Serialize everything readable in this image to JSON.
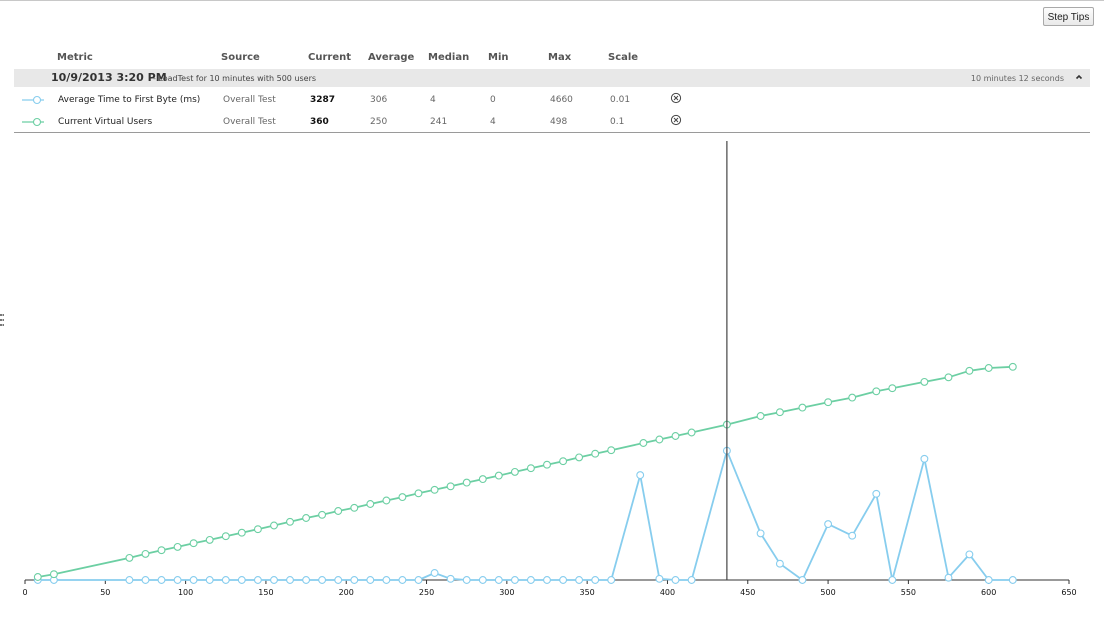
{
  "toolbar": {
    "step_tips_label": "Step Tips"
  },
  "table": {
    "headers": {
      "metric": "Metric",
      "source": "Source",
      "current": "Current",
      "average": "Average",
      "median": "Median",
      "min": "Min",
      "max": "Max",
      "scale": "Scale"
    },
    "group": {
      "date": "10/9/2013 3:20 PM",
      "description": "- LoadTest for 10 minutes with 500 users",
      "duration": "10 minutes 12 seconds",
      "collapse_icon": "chevron-up-icon"
    },
    "rows": [
      {
        "metric": "Average Time to First Byte (ms)",
        "source": "Overall Test",
        "current": "3287",
        "average": "306",
        "median": "4",
        "min": "0",
        "max": "4660",
        "scale": "0.01",
        "color": "#87cdee",
        "remove_icon": "remove-icon"
      },
      {
        "metric": "Current Virtual Users",
        "source": "Overall Test",
        "current": "360",
        "average": "250",
        "median": "241",
        "min": "4",
        "max": "498",
        "scale": "0.1",
        "color": "#6ccfa3",
        "remove_icon": "remove-icon"
      }
    ]
  },
  "chart_data": {
    "type": "line",
    "xlim": [
      0,
      650
    ],
    "x_ticks": [
      "0",
      "50",
      "100",
      "150",
      "200",
      "250",
      "300",
      "350",
      "400",
      "450",
      "500",
      "550",
      "600",
      "650"
    ],
    "cursor_x": 437,
    "series": [
      {
        "name": "Average Time to First Byte (ms)",
        "color": "#87cdee",
        "points": [
          [
            8,
            0
          ],
          [
            18,
            0
          ],
          [
            65,
            0
          ],
          [
            75,
            0
          ],
          [
            85,
            0
          ],
          [
            95,
            0
          ],
          [
            105,
            0
          ],
          [
            115,
            0
          ],
          [
            125,
            0
          ],
          [
            135,
            0
          ],
          [
            145,
            0
          ],
          [
            155,
            0
          ],
          [
            165,
            0
          ],
          [
            175,
            0
          ],
          [
            185,
            0
          ],
          [
            195,
            0
          ],
          [
            205,
            0
          ],
          [
            215,
            0
          ],
          [
            225,
            0
          ],
          [
            235,
            0
          ],
          [
            245,
            0
          ],
          [
            255,
            0.3
          ],
          [
            265,
            0.05
          ],
          [
            275,
            0
          ],
          [
            285,
            0
          ],
          [
            295,
            0
          ],
          [
            305,
            0
          ],
          [
            315,
            0
          ],
          [
            325,
            0
          ],
          [
            335,
            0
          ],
          [
            345,
            0
          ],
          [
            355,
            0
          ],
          [
            365,
            0
          ],
          [
            383,
            4.5
          ],
          [
            395,
            0.05
          ],
          [
            405,
            0
          ],
          [
            415,
            0
          ],
          [
            437,
            5.55
          ],
          [
            458,
            2
          ],
          [
            470,
            0.7
          ],
          [
            484,
            0
          ],
          [
            500,
            2.4
          ],
          [
            515,
            1.9
          ],
          [
            530,
            3.7
          ],
          [
            540,
            0
          ],
          [
            560,
            5.2
          ],
          [
            575,
            0.1
          ],
          [
            588,
            1.1
          ],
          [
            600,
            0
          ],
          [
            615,
            0
          ]
        ]
      },
      {
        "name": "Current Virtual Users",
        "color": "#6ccfa3",
        "points": [
          [
            8,
            0.13
          ],
          [
            18,
            0.25
          ],
          [
            65,
            0.95
          ],
          [
            75,
            1.12
          ],
          [
            85,
            1.28
          ],
          [
            95,
            1.42
          ],
          [
            105,
            1.58
          ],
          [
            115,
            1.72
          ],
          [
            125,
            1.88
          ],
          [
            135,
            2.03
          ],
          [
            145,
            2.18
          ],
          [
            155,
            2.34
          ],
          [
            165,
            2.5
          ],
          [
            175,
            2.66
          ],
          [
            185,
            2.8
          ],
          [
            195,
            2.96
          ],
          [
            205,
            3.1
          ],
          [
            215,
            3.26
          ],
          [
            225,
            3.41
          ],
          [
            235,
            3.56
          ],
          [
            245,
            3.72
          ],
          [
            255,
            3.87
          ],
          [
            265,
            4.02
          ],
          [
            275,
            4.18
          ],
          [
            285,
            4.33
          ],
          [
            295,
            4.48
          ],
          [
            305,
            4.64
          ],
          [
            315,
            4.8
          ],
          [
            325,
            4.95
          ],
          [
            335,
            5.1
          ],
          [
            345,
            5.26
          ],
          [
            355,
            5.42
          ],
          [
            365,
            5.57
          ],
          [
            385,
            5.88
          ],
          [
            395,
            6.03
          ],
          [
            405,
            6.18
          ],
          [
            415,
            6.33
          ],
          [
            437,
            6.67
          ],
          [
            458,
            7.04
          ],
          [
            470,
            7.2
          ],
          [
            484,
            7.4
          ],
          [
            500,
            7.63
          ],
          [
            515,
            7.83
          ],
          [
            530,
            8.1
          ],
          [
            540,
            8.23
          ],
          [
            560,
            8.5
          ],
          [
            575,
            8.7
          ],
          [
            588,
            8.98
          ],
          [
            600,
            9.1
          ],
          [
            615,
            9.15
          ]
        ]
      }
    ]
  }
}
